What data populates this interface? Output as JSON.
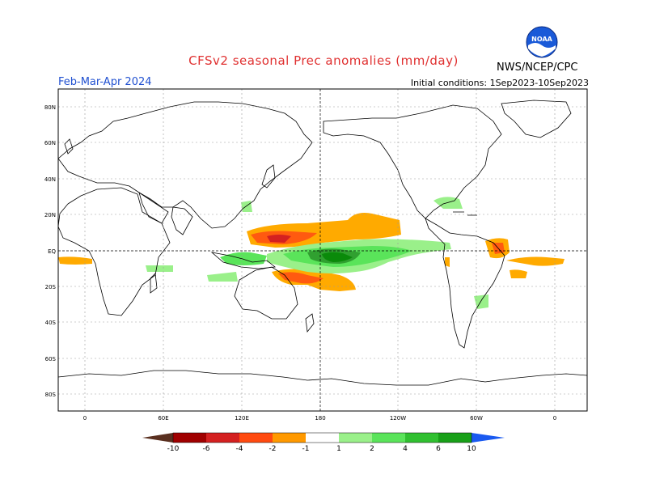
{
  "header": {
    "title": "CFSv2 seasonal Prec anomalies (mm/day)",
    "season": "Feb-Mar-Apr 2024",
    "initial_conditions": "Initial conditions: 1Sep2023-10Sep2023",
    "agency": "NWS/NCEP/CPC",
    "logo_text": "NOAA"
  },
  "axes": {
    "y_labels": [
      "80N",
      "60N",
      "40N",
      "20N",
      "EQ",
      "20S",
      "40S",
      "60S",
      "80S"
    ],
    "x_labels": [
      "0",
      "60E",
      "120E",
      "180",
      "120W",
      "60W",
      "0"
    ]
  },
  "colorbar": {
    "tick_labels": [
      "-10",
      "-6",
      "-4",
      "-2",
      "-1",
      "1",
      "2",
      "4",
      "6",
      "10"
    ],
    "colors": [
      "#5a3020",
      "#a00000",
      "#d42020",
      "#ff4a10",
      "#ff9900",
      "#ffb800",
      "#ffffff",
      "#9af08a",
      "#5ae45a",
      "#30c030",
      "#18a018",
      "#0a8a0a",
      "#1a5af0"
    ]
  },
  "colors": {
    "coast": "#000000",
    "grid": "#9a9a9a",
    "wet_light": "#9af08a",
    "wet_mid": "#5ae45a",
    "wet_dark": "#30a030",
    "wet_deep": "#0a8a0a",
    "dry_light": "#ffaa00",
    "dry_mid": "#ff5a10",
    "dry_dark": "#d42020"
  }
}
